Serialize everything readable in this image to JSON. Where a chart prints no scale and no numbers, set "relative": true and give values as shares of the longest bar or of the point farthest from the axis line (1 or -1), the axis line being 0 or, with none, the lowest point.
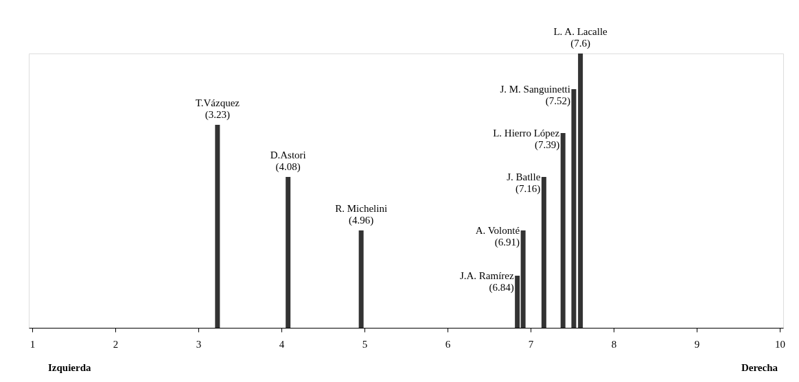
{
  "chart_data": {
    "type": "bar",
    "relative": true,
    "color": "#333333",
    "x": [
      3.23,
      4.08,
      4.96,
      6.84,
      6.91,
      7.16,
      7.39,
      7.52,
      7.6
    ],
    "values": [
      0.74,
      0.55,
      0.355,
      0.19,
      0.355,
      0.55,
      0.71,
      0.87,
      1
    ],
    "xlim": [
      1,
      10
    ],
    "xticks": [
      1,
      2,
      3,
      4,
      5,
      6,
      7,
      8,
      9,
      10
    ],
    "annotations": [
      {
        "text": "T.Vázquez\n(3.23)",
        "x": 3.23,
        "y": 0.74
      },
      {
        "text": "D.Astori\n(4.08)",
        "x": 4.08,
        "y": 0.55
      },
      {
        "text": "R. Michelini\n(4.96)",
        "x": 4.96,
        "y": 0.355
      },
      {
        "text": "J.A. Ramírez\n(6.84)",
        "x": 6.84,
        "y": 0.19
      },
      {
        "text": "A. Volonté\n(6.91)",
        "x": 6.91,
        "y": 0.355
      },
      {
        "text": "J. Batlle\n(7.16)",
        "x": 7.16,
        "y": 0.55
      },
      {
        "text": "L. Hierro López\n(7.39)",
        "x": 7.39,
        "y": 0.71
      },
      {
        "text": "J. M. Sanguinetti\n(7.52)",
        "x": 7.52,
        "y": 0.87
      },
      {
        "text": "L. A. Lacalle\n(7.6)",
        "x": 7.6,
        "y": 1
      },
      "Izquierda",
      "Derecha"
    ]
  }
}
